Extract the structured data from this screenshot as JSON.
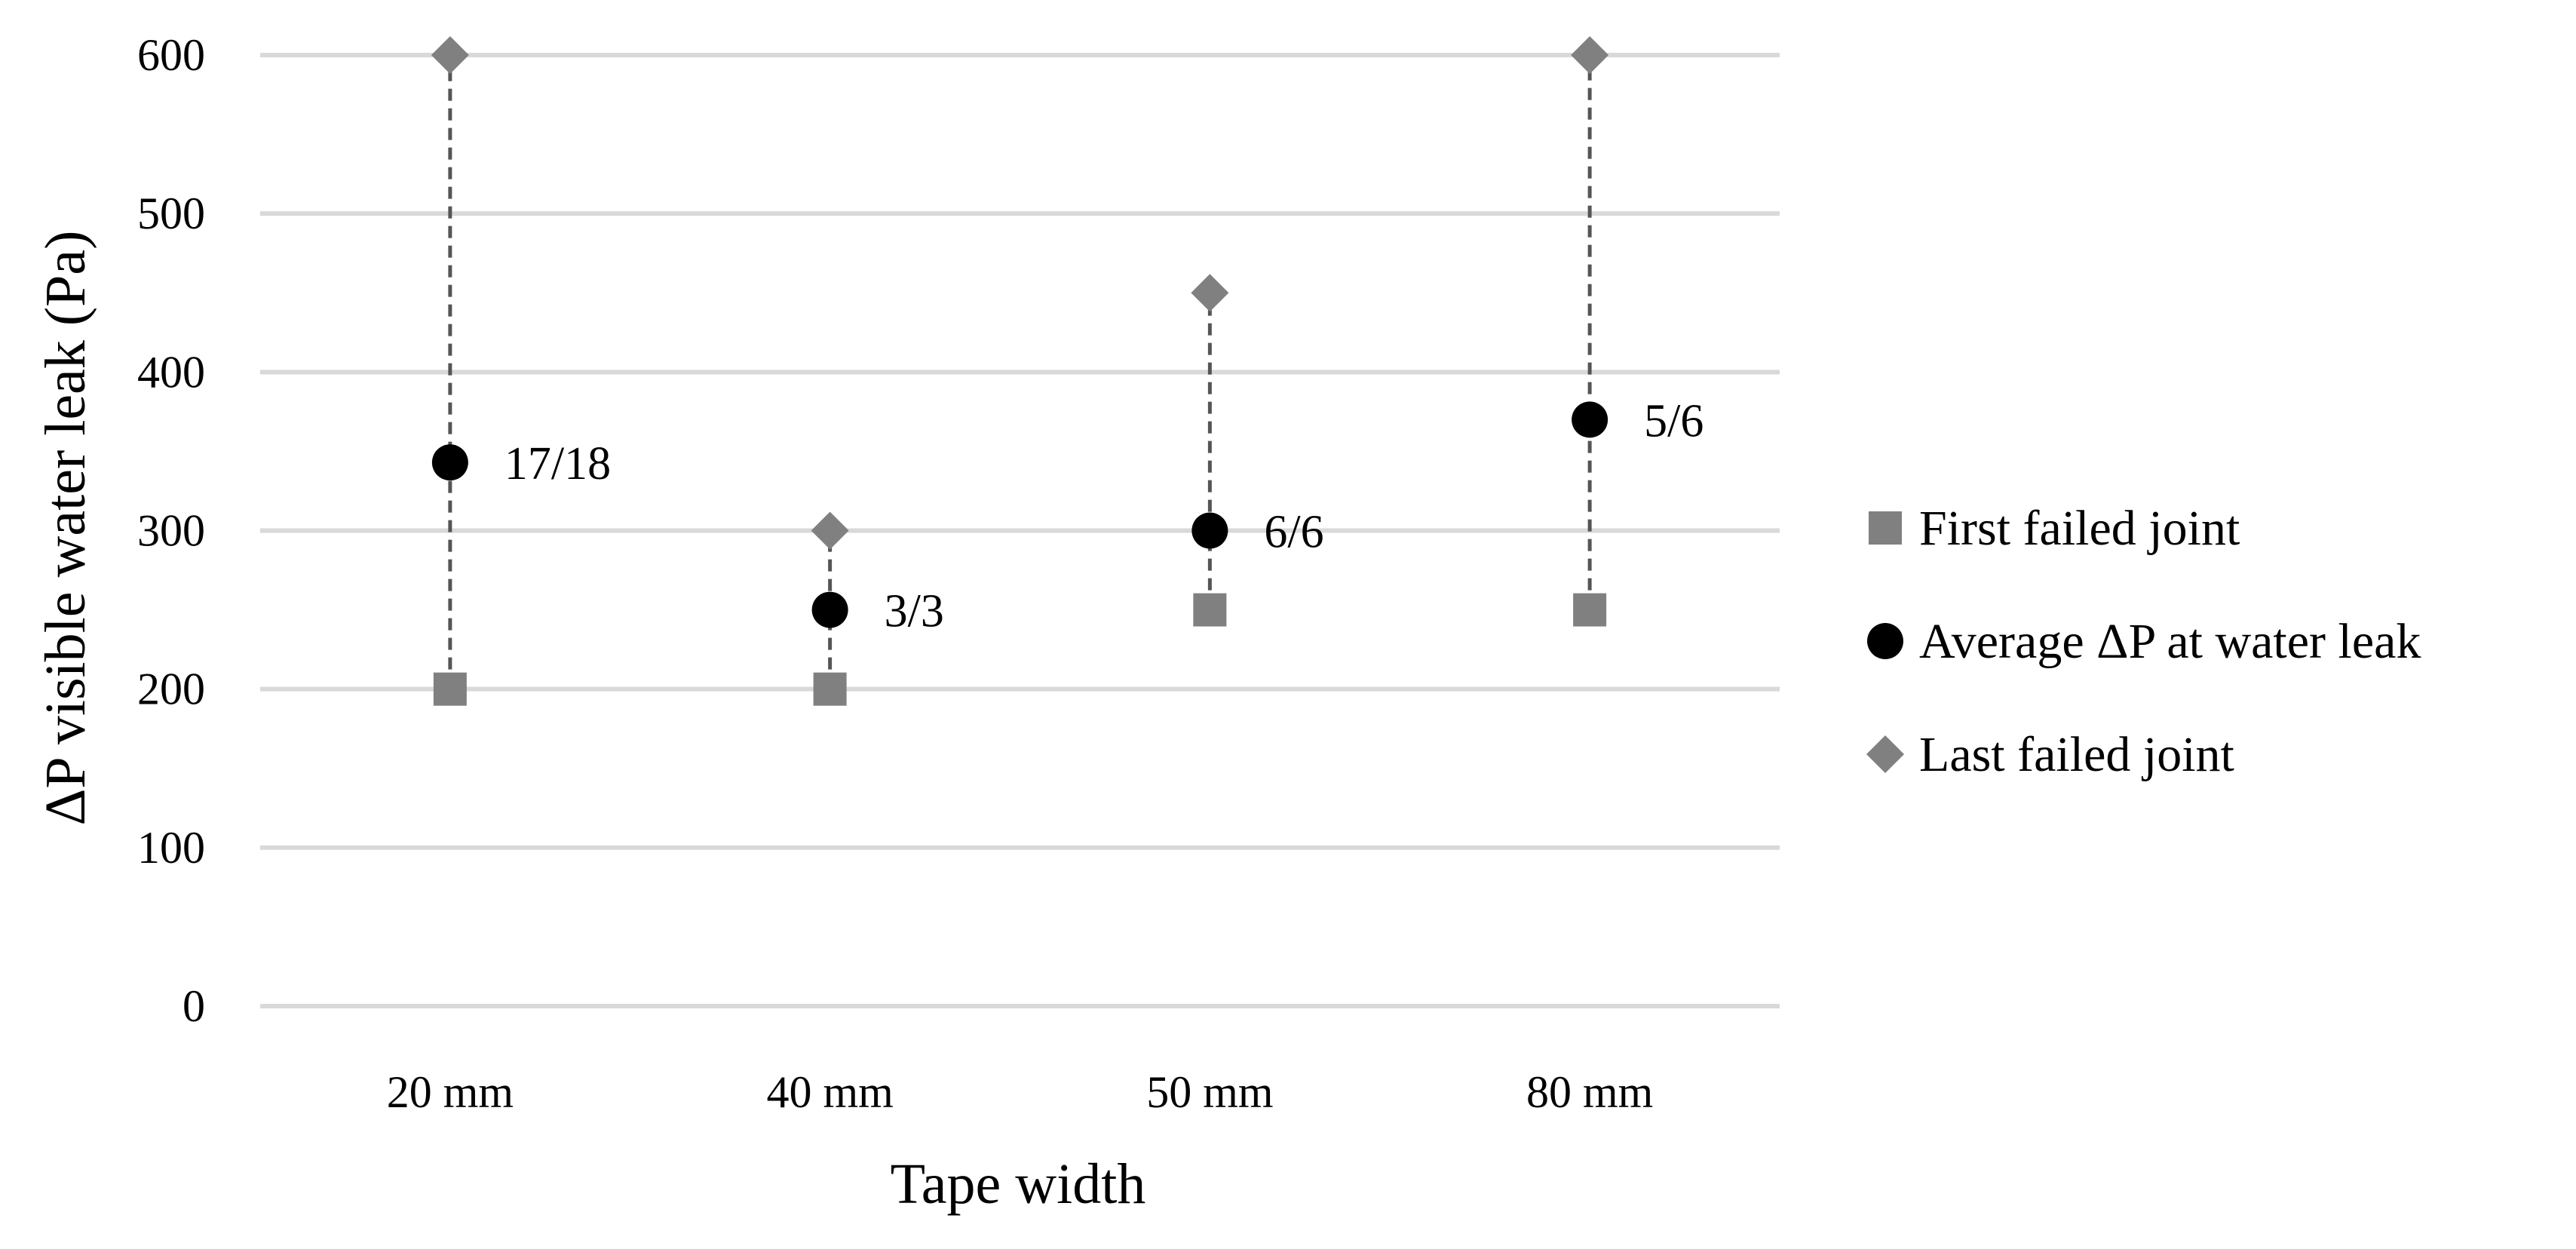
{
  "chart_data": {
    "type": "scatter",
    "categories": [
      "20 mm",
      "40 mm",
      "50 mm",
      "80 mm"
    ],
    "series": [
      {
        "name": "First failed joint",
        "marker": "square",
        "color": "#808080",
        "values": [
          200,
          200,
          250,
          250
        ]
      },
      {
        "name": "Average ΔP at water leak",
        "marker": "circle",
        "color": "#000000",
        "values": [
          343,
          250,
          300,
          370
        ]
      },
      {
        "name": "Last failed joint",
        "marker": "diamond",
        "color": "#808080",
        "values": [
          600,
          300,
          450,
          600
        ]
      }
    ],
    "data_labels": [
      "17/18",
      "3/3",
      "6/6",
      "5/6"
    ],
    "xlabel": "Tape width",
    "ylabel": "ΔP visible water leak (Pa)",
    "ylim": [
      0,
      600
    ],
    "yticks": [
      0,
      100,
      200,
      300,
      400,
      500,
      600
    ],
    "grid": true,
    "legend_position": "right",
    "range_line_style": "dashed",
    "range_line_color": "#555555",
    "gridline_color": "#d9d9d9"
  }
}
